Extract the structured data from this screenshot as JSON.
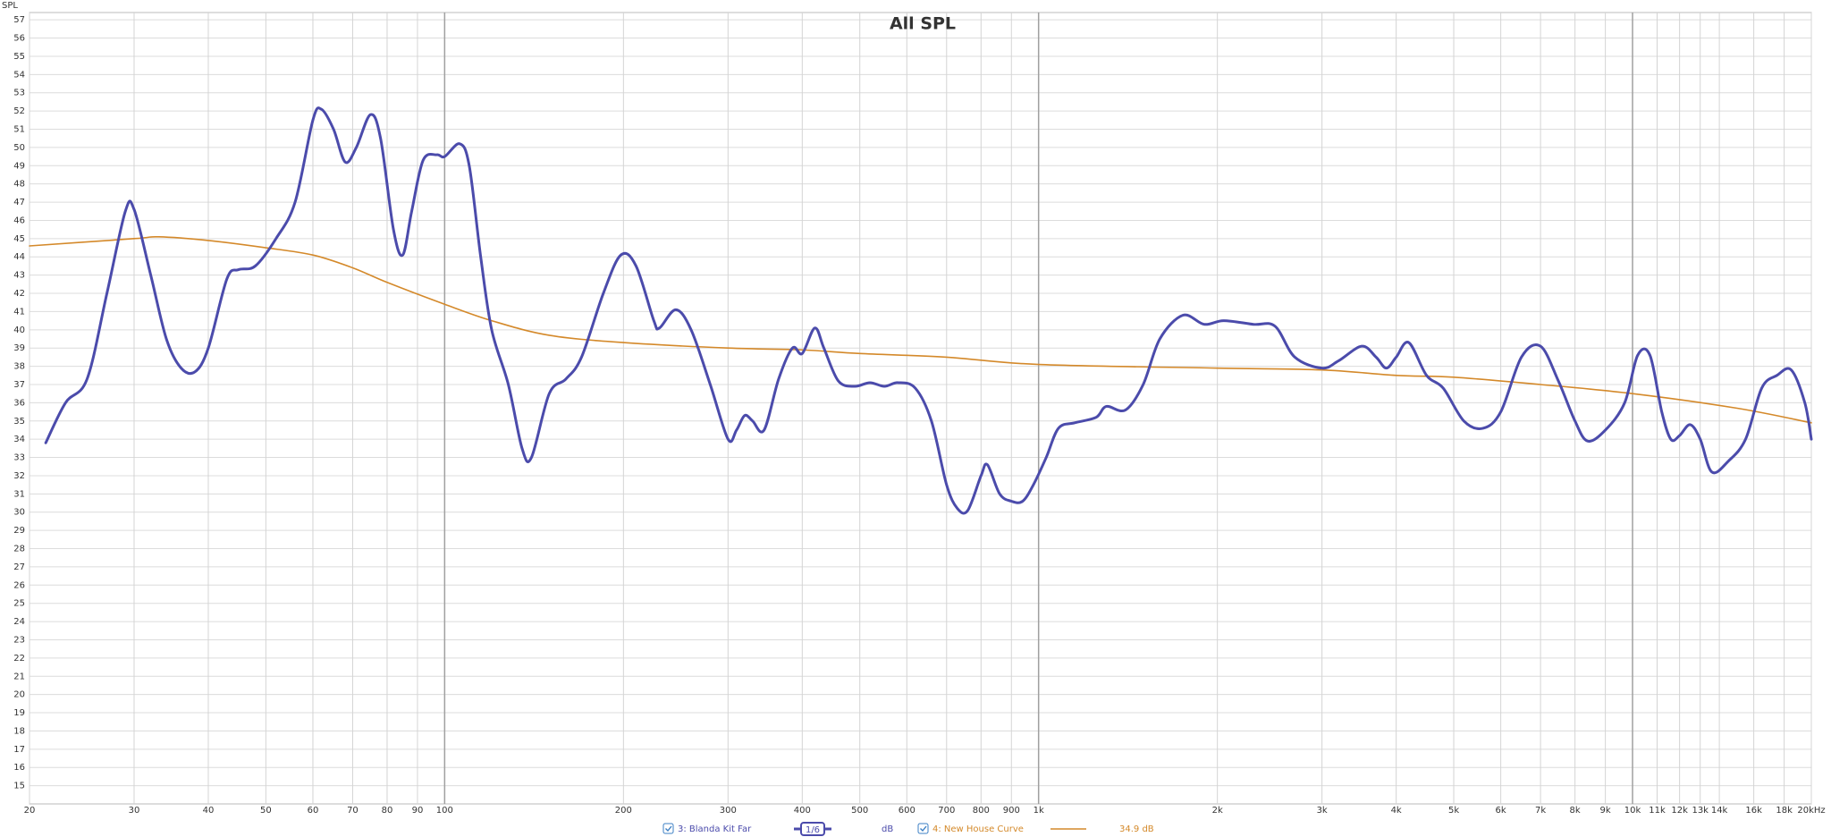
{
  "chart_data": {
    "type": "line",
    "title": "All SPL",
    "y_label": "SPL",
    "log_x": true,
    "grid": true,
    "xlim": [
      20,
      20000
    ],
    "ylim": [
      14,
      57.4
    ],
    "xticks": [
      20,
      30,
      40,
      50,
      60,
      70,
      80,
      90,
      100,
      200,
      300,
      400,
      500,
      600,
      700,
      800,
      900,
      {
        "value": 1000,
        "label": "1k"
      },
      {
        "value": 2000,
        "label": "2k"
      },
      {
        "value": 3000,
        "label": "3k"
      },
      {
        "value": 4000,
        "label": "4k"
      },
      {
        "value": 5000,
        "label": "5k"
      },
      {
        "value": 6000,
        "label": "6k"
      },
      {
        "value": 7000,
        "label": "7k"
      },
      {
        "value": 8000,
        "label": "8k"
      },
      {
        "value": 9000,
        "label": "9k"
      },
      {
        "value": 10000,
        "label": "10k"
      },
      {
        "value": 11000,
        "label": "11k"
      },
      {
        "value": 12000,
        "label": "12k"
      },
      {
        "value": 13000,
        "label": "13k"
      },
      {
        "value": 14000,
        "label": "14k"
      },
      {
        "value": 16000,
        "label": "16k"
      },
      {
        "value": 18000,
        "label": "18k"
      },
      {
        "value": 20000,
        "label": "20kHz"
      }
    ],
    "yticks": [
      15,
      16,
      17,
      18,
      19,
      20,
      21,
      22,
      23,
      24,
      25,
      26,
      27,
      28,
      29,
      30,
      31,
      32,
      33,
      34,
      35,
      36,
      37,
      38,
      39,
      40,
      41,
      42,
      43,
      44,
      45,
      46,
      47,
      48,
      49,
      50,
      51,
      52,
      53,
      54,
      55,
      56,
      57
    ],
    "legend": {
      "smoothing": "1/6",
      "unit": "dB",
      "offset": "34.9 dB"
    },
    "series": [
      {
        "name": "3: Blanda Kit Far",
        "color": "#4b4bab",
        "width": 3,
        "x": [
          21.3,
          23,
          25,
          27,
          29,
          30,
          32,
          34,
          36,
          38,
          40,
          43,
          45,
          48,
          52,
          56,
          60,
          62,
          65,
          68,
          71,
          75,
          78,
          82,
          85,
          88,
          92,
          97,
          100,
          106,
          110,
          115,
          120,
          128,
          135,
          140,
          150,
          160,
          170,
          185,
          198,
          210,
          225,
          230,
          245,
          260,
          280,
          300,
          310,
          320,
          330,
          345,
          365,
          385,
          400,
          420,
          435,
          460,
          490,
          520,
          550,
          580,
          620,
          660,
          700,
          730,
          760,
          800,
          820,
          860,
          900,
          940,
          980,
          1030,
          1080,
          1150,
          1250,
          1300,
          1400,
          1500,
          1600,
          1750,
          1900,
          2050,
          2300,
          2500,
          2700,
          3000,
          3200,
          3500,
          3700,
          3850,
          4000,
          4200,
          4500,
          4800,
          5200,
          5600,
          6000,
          6500,
          7000,
          7500,
          8000,
          8400,
          9000,
          9700,
          10200,
          10700,
          11200,
          11600,
          12000,
          12500,
          13000,
          13600,
          14500,
          15500,
          16500,
          17500,
          18500,
          19500,
          20000
        ],
        "values": [
          33.8,
          36,
          37.3,
          42,
          46.5,
          46.6,
          43,
          39.5,
          37.9,
          37.7,
          39,
          42.8,
          43.3,
          43.5,
          45,
          47,
          51.5,
          52.1,
          51,
          49.2,
          50,
          51.8,
          50.5,
          45.5,
          44.1,
          46.5,
          49.3,
          49.6,
          49.5,
          50.2,
          49,
          44,
          40,
          37,
          33.5,
          33,
          36.5,
          37.3,
          38.5,
          42,
          44.1,
          43.5,
          40.5,
          40.1,
          41.1,
          40,
          37,
          34,
          34.5,
          35.3,
          35,
          34.5,
          37.3,
          39,
          38.7,
          40.1,
          39,
          37.2,
          36.9,
          37.1,
          36.9,
          37.1,
          36.8,
          35,
          31.5,
          30.2,
          30.1,
          32,
          32.6,
          31,
          30.6,
          30.6,
          31.5,
          33,
          34.6,
          34.9,
          35.2,
          35.8,
          35.6,
          37,
          39.5,
          40.8,
          40.3,
          40.5,
          40.3,
          40.2,
          38.5,
          37.9,
          38.3,
          39.1,
          38.5,
          37.9,
          38.5,
          39.3,
          37.5,
          36.8,
          35,
          34.6,
          35.5,
          38.5,
          39.1,
          37.2,
          35,
          33.9,
          34.5,
          36,
          38.6,
          38.6,
          35.5,
          34,
          34.2,
          34.8,
          34,
          32.2,
          32.8,
          34,
          36.8,
          37.5,
          37.8,
          36,
          34
        ]
      },
      {
        "name": "4: New House Curve",
        "color": "#d4892a",
        "width": 1.6,
        "x": [
          20,
          30,
          33,
          40,
          50,
          60,
          70,
          80,
          100,
          120,
          150,
          200,
          300,
          400,
          500,
          700,
          1000,
          2000,
          3000,
          4000,
          5000,
          7000,
          10000,
          15000,
          20000
        ],
        "values": [
          44.6,
          45,
          45.1,
          44.9,
          44.5,
          44.1,
          43.4,
          42.6,
          41.4,
          40.5,
          39.7,
          39.3,
          39,
          38.9,
          38.7,
          38.5,
          38.1,
          37.9,
          37.8,
          37.5,
          37.4,
          37,
          36.5,
          35.7,
          34.9
        ]
      }
    ]
  }
}
